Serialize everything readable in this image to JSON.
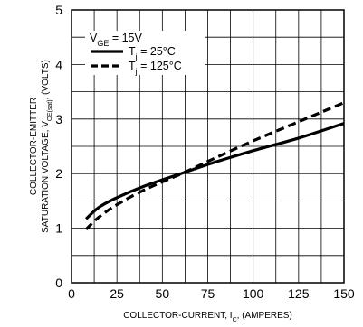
{
  "chart_data": {
    "type": "line",
    "xlabel": {
      "main": "COLLECTOR-CURRENT, I",
      "sub": "C",
      "tail": ", (AMPERES)"
    },
    "ylabel": {
      "line1": "COLLECTOR-EMITTER",
      "line2_main": "SATURATION VOLTAGE, V",
      "line2_sub": "CE(sat)",
      "line2_tail": ", (VOLTS)"
    },
    "xlim": [
      0,
      150
    ],
    "ylim": [
      0,
      5
    ],
    "xticks": [
      0,
      25,
      50,
      75,
      100,
      125,
      150
    ],
    "yticks": [
      0,
      1,
      2,
      3,
      4,
      5
    ],
    "grid": true,
    "legend": {
      "placement": "top-left",
      "header": {
        "main": "V",
        "sub": "GE",
        "tail": " = 15V"
      },
      "entries": [
        {
          "main": "T",
          "sub": "j",
          "tail": " = 25°C",
          "style": "solid"
        },
        {
          "main": "T",
          "sub": "j",
          "tail": " = 125°C",
          "style": "dashed"
        }
      ]
    },
    "series": [
      {
        "style": "solid",
        "x": [
          8,
          15,
          25,
          40,
          62,
          80,
          100,
          125,
          150
        ],
        "y": [
          1.17,
          1.38,
          1.56,
          1.77,
          2.02,
          2.22,
          2.42,
          2.65,
          2.92
        ]
      },
      {
        "style": "dashed",
        "x": [
          8,
          15,
          25,
          40,
          62,
          80,
          100,
          125,
          150
        ],
        "y": [
          0.98,
          1.2,
          1.43,
          1.7,
          2.02,
          2.3,
          2.6,
          2.95,
          3.3
        ]
      }
    ]
  }
}
